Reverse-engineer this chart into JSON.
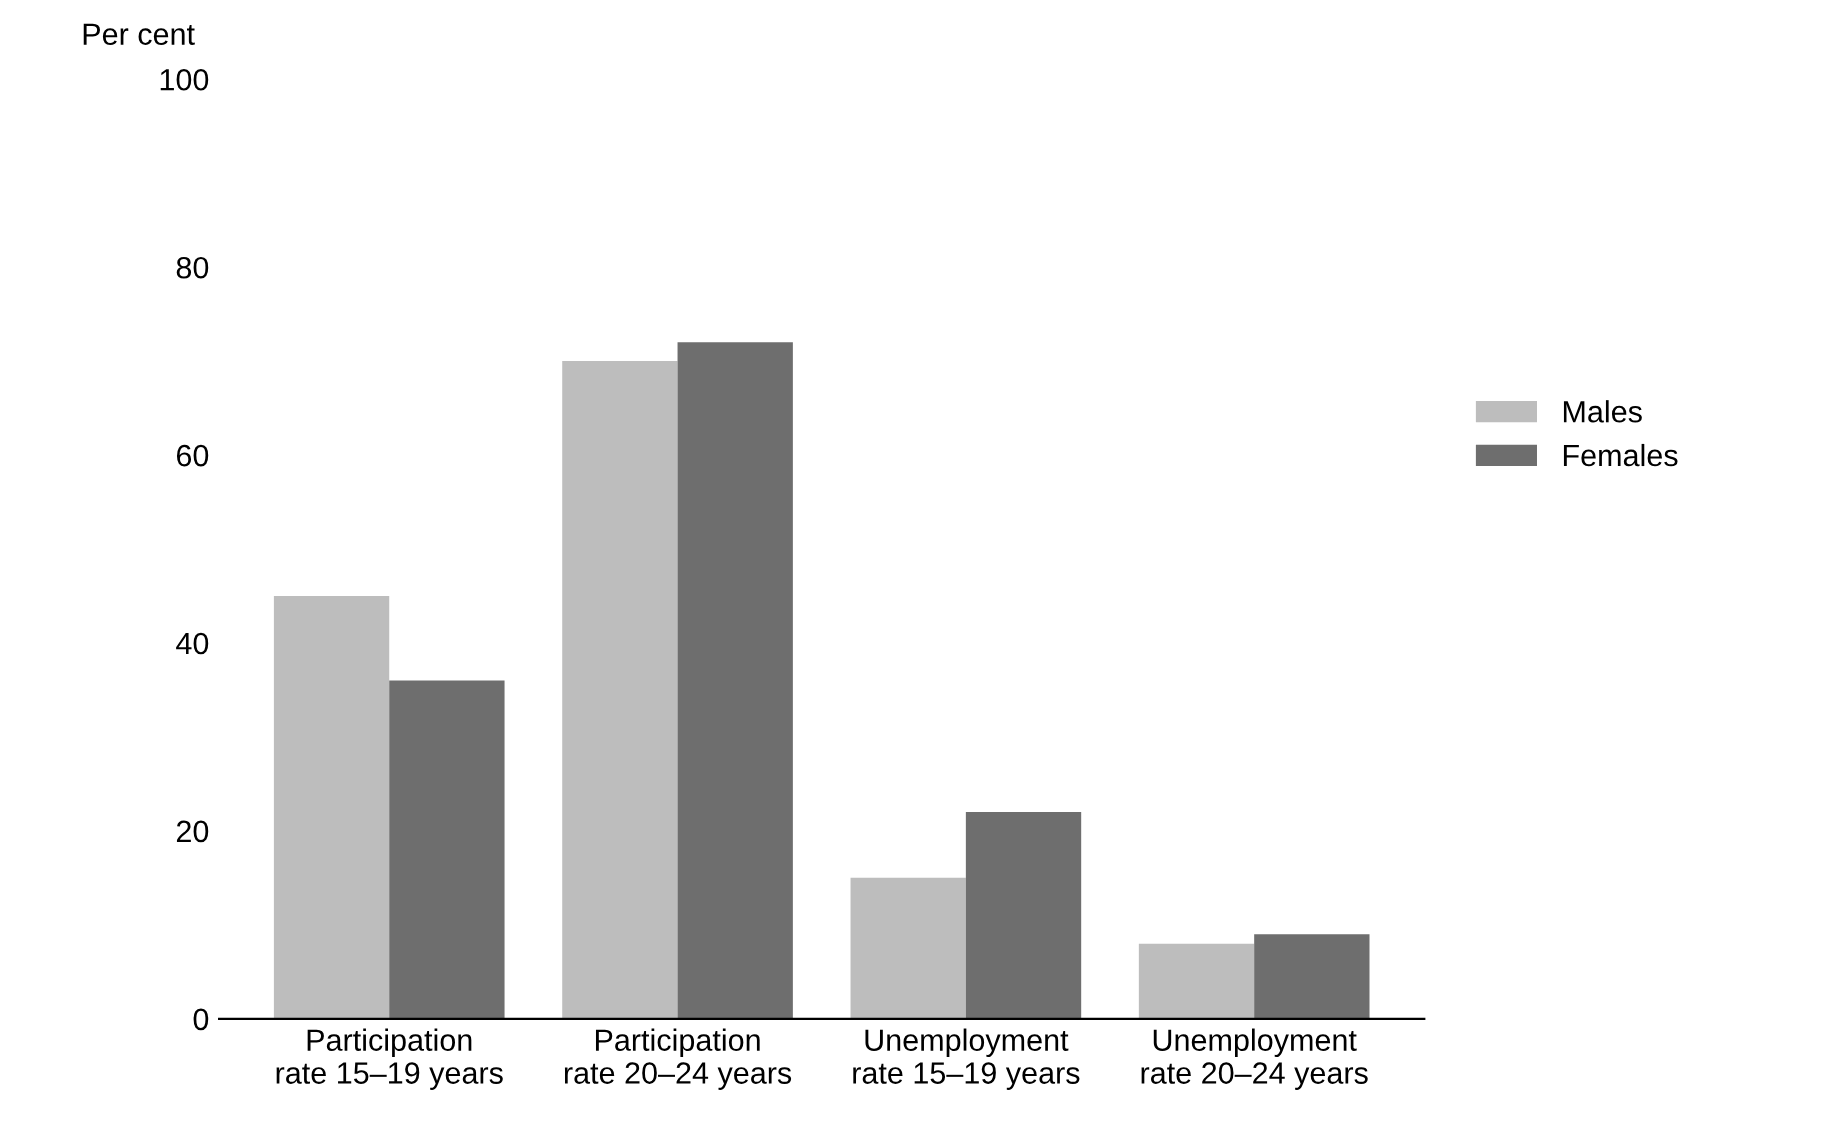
{
  "chart_data": {
    "type": "bar",
    "ylabel": "Per cent",
    "categories": [
      "Participation\nrate 15–19 years",
      "Participation\nrate 20–24 years",
      "Unemployment\nrate 15–19 years",
      "Unemployment\nrate 20–24 years"
    ],
    "series": [
      {
        "name": "Males",
        "color": "#bdbdbd",
        "values": [
          45,
          70,
          15,
          8
        ]
      },
      {
        "name": "Females",
        "color": "#6e6e6e",
        "values": [
          36,
          72,
          22,
          9
        ]
      }
    ],
    "ylim": [
      0,
      100
    ],
    "yticks": [
      0,
      20,
      40,
      60,
      80,
      100
    ],
    "grid": false,
    "legend": "right"
  }
}
